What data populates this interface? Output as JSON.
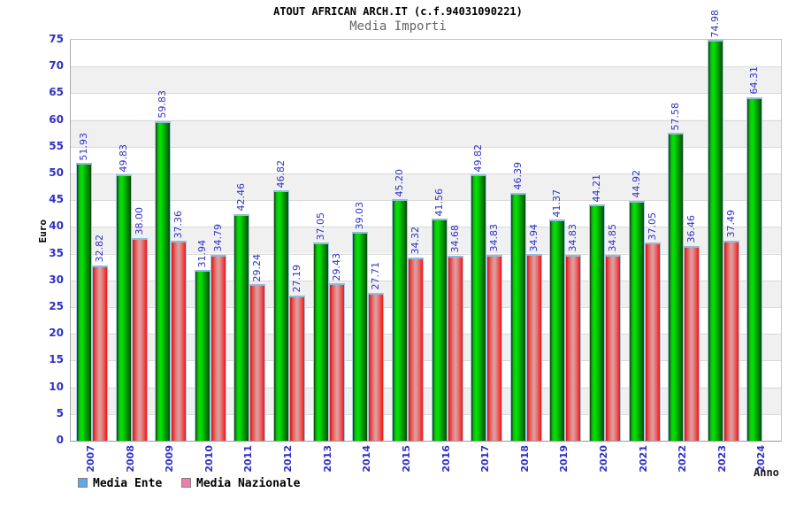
{
  "header": {
    "title": "ATOUT AFRICAN ARCH.IT (c.f.94031090221)",
    "subtitle": "Media Importi"
  },
  "chart_data": {
    "type": "bar",
    "title": "ATOUT AFRICAN ARCH.IT (c.f.94031090221)",
    "subtitle": "Media Importi",
    "xlabel": "Anno",
    "ylabel": "Euro",
    "ylim": [
      0,
      75
    ],
    "ytick_step": 5,
    "grid": "horizontal-bands",
    "legend_position": "bottom-left",
    "value_label_format": "2-decimals",
    "categories": [
      "2007",
      "2008",
      "2009",
      "2010",
      "2011",
      "2012",
      "2013",
      "2014",
      "2015",
      "2016",
      "2017",
      "2018",
      "2019",
      "2020",
      "2021",
      "2022",
      "2023",
      "2024"
    ],
    "series": [
      {
        "name": "Media Ente",
        "bar_style": "green-cylinder",
        "values": [
          51.93,
          49.83,
          59.83,
          31.94,
          42.46,
          46.82,
          37.05,
          39.03,
          45.2,
          41.56,
          49.82,
          46.39,
          41.37,
          44.21,
          44.92,
          57.58,
          74.98,
          64.31
        ]
      },
      {
        "name": "Media Nazionale",
        "bar_style": "red-cylinder",
        "values": [
          32.82,
          38.0,
          37.36,
          34.79,
          29.24,
          27.19,
          29.43,
          27.71,
          34.32,
          34.68,
          34.83,
          34.94,
          34.83,
          34.85,
          37.05,
          36.46,
          37.49,
          null
        ]
      }
    ]
  },
  "colors": {
    "label_blue": "#3030c8",
    "bar_green_main": "#00d300",
    "bar_green_dark": "#0b3d0b",
    "bar_red_main": "#f01414",
    "bar_red_light": "#de9c9c",
    "bar_cap_blue": "#8fbcde",
    "legend_ente_blue": "#5fa8e8",
    "legend_nazionale_pink": "#ee7cac",
    "band_gray": "#f0f0f0",
    "title_black": "#000000",
    "subtitle_gray": "#666666"
  }
}
